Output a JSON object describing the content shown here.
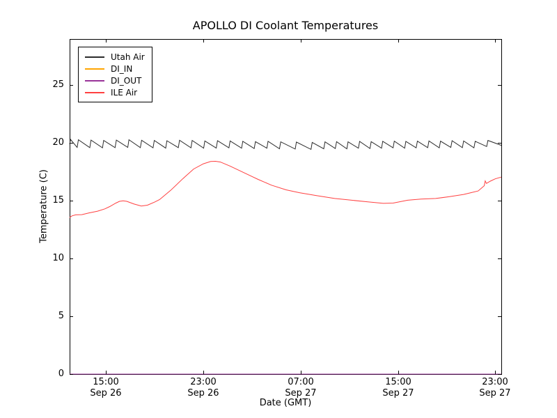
{
  "chart_data": {
    "type": "line",
    "title": "APOLLO DI Coolant Temperatures",
    "xlabel": "Date (GMT)",
    "ylabel": "Temperature (C)",
    "xlim": [
      0,
      35.5
    ],
    "ylim": [
      0,
      29
    ],
    "x_unit": "hours since Sep 26 ~12:00 GMT",
    "grid": false,
    "legend_position": "upper left",
    "axis_color": "#000000",
    "background_color": "#ffffff",
    "yticks": [
      {
        "label": "0",
        "value": 0
      },
      {
        "label": "5",
        "value": 5
      },
      {
        "label": "10",
        "value": 10
      },
      {
        "label": "15",
        "value": 15
      },
      {
        "label": "20",
        "value": 20
      },
      {
        "label": "25",
        "value": 25
      }
    ],
    "xticks": [
      {
        "time": "15:00",
        "date": "Sep 26",
        "h": 3
      },
      {
        "time": "23:00",
        "date": "Sep 26",
        "h": 11
      },
      {
        "time": "07:00",
        "date": "Sep 27",
        "h": 19
      },
      {
        "time": "15:00",
        "date": "Sep 27",
        "h": 27
      },
      {
        "time": "23:00",
        "date": "Sep 27",
        "h": 35
      }
    ],
    "series": [
      {
        "name": "Utah Air",
        "color": "#2b2b2b",
        "points": [
          [
            0,
            19.9
          ],
          [
            0.08,
            20.3
          ],
          [
            0.62,
            19.62
          ],
          [
            0.72,
            20.28
          ],
          [
            1.66,
            19.6
          ],
          [
            1.76,
            20.25
          ],
          [
            2.7,
            19.58
          ],
          [
            2.8,
            20.22
          ],
          [
            3.74,
            19.6
          ],
          [
            3.84,
            20.25
          ],
          [
            4.78,
            19.62
          ],
          [
            4.88,
            20.28
          ],
          [
            5.82,
            19.6
          ],
          [
            5.92,
            20.24
          ],
          [
            6.86,
            19.58
          ],
          [
            6.96,
            20.22
          ],
          [
            7.9,
            19.56
          ],
          [
            8.0,
            20.2
          ],
          [
            8.94,
            19.6
          ],
          [
            9.04,
            20.24
          ],
          [
            9.98,
            19.58
          ],
          [
            10.08,
            20.22
          ],
          [
            11.02,
            19.55
          ],
          [
            11.12,
            20.18
          ],
          [
            12.06,
            19.56
          ],
          [
            12.16,
            20.2
          ],
          [
            13.1,
            19.58
          ],
          [
            13.2,
            20.18
          ],
          [
            14.14,
            19.55
          ],
          [
            14.24,
            20.15
          ],
          [
            15.18,
            19.52
          ],
          [
            15.28,
            20.12
          ],
          [
            16.22,
            19.55
          ],
          [
            16.32,
            20.15
          ],
          [
            17.26,
            19.5
          ],
          [
            17.36,
            20.1
          ],
          [
            18.55,
            19.48
          ],
          [
            18.65,
            20.08
          ],
          [
            19.85,
            19.45
          ],
          [
            19.95,
            20.05
          ],
          [
            20.9,
            19.5
          ],
          [
            21.0,
            20.1
          ],
          [
            21.85,
            19.52
          ],
          [
            21.95,
            20.12
          ],
          [
            22.8,
            19.5
          ],
          [
            22.9,
            20.1
          ],
          [
            23.75,
            19.55
          ],
          [
            23.85,
            20.14
          ],
          [
            24.7,
            19.52
          ],
          [
            24.8,
            20.12
          ],
          [
            25.65,
            19.55
          ],
          [
            25.75,
            20.15
          ],
          [
            26.6,
            19.58
          ],
          [
            26.7,
            20.16
          ],
          [
            27.55,
            19.55
          ],
          [
            27.65,
            20.14
          ],
          [
            28.5,
            19.58
          ],
          [
            28.6,
            20.16
          ],
          [
            29.45,
            19.6
          ],
          [
            29.55,
            20.18
          ],
          [
            30.4,
            19.58
          ],
          [
            30.5,
            20.16
          ],
          [
            31.35,
            19.62
          ],
          [
            31.45,
            20.2
          ],
          [
            32.3,
            19.6
          ],
          [
            32.4,
            20.18
          ],
          [
            33.25,
            19.58
          ],
          [
            33.35,
            20.15
          ],
          [
            34.3,
            19.7
          ],
          [
            34.4,
            20.22
          ],
          [
            35.5,
            19.8
          ]
        ]
      },
      {
        "name": "DI_IN",
        "color": "#ffa500",
        "points": [
          [
            0,
            0
          ],
          [
            35.5,
            0
          ]
        ]
      },
      {
        "name": "DI_OUT",
        "color": "#993399",
        "points": [
          [
            0,
            0
          ],
          [
            35.5,
            0
          ]
        ]
      },
      {
        "name": "ILE Air",
        "color": "#ff4040",
        "points": [
          [
            0,
            13.55
          ],
          [
            0.2,
            13.7
          ],
          [
            0.5,
            13.78
          ],
          [
            1.0,
            13.8
          ],
          [
            1.6,
            13.95
          ],
          [
            2.3,
            14.1
          ],
          [
            2.9,
            14.3
          ],
          [
            3.3,
            14.5
          ],
          [
            3.8,
            14.8
          ],
          [
            4.1,
            14.95
          ],
          [
            4.4,
            15.0
          ],
          [
            4.7,
            14.95
          ],
          [
            5.3,
            14.72
          ],
          [
            5.9,
            14.55
          ],
          [
            6.4,
            14.62
          ],
          [
            7.0,
            14.9
          ],
          [
            7.4,
            15.1
          ],
          [
            8.3,
            15.9
          ],
          [
            9.3,
            16.9
          ],
          [
            10.2,
            17.75
          ],
          [
            11.0,
            18.2
          ],
          [
            11.6,
            18.4
          ],
          [
            12.0,
            18.42
          ],
          [
            12.4,
            18.35
          ],
          [
            13.2,
            18.0
          ],
          [
            14.3,
            17.45
          ],
          [
            15.5,
            16.85
          ],
          [
            16.6,
            16.35
          ],
          [
            17.8,
            15.95
          ],
          [
            18.9,
            15.7
          ],
          [
            20.3,
            15.45
          ],
          [
            21.8,
            15.2
          ],
          [
            23.2,
            15.05
          ],
          [
            24.6,
            14.9
          ],
          [
            25.8,
            14.78
          ],
          [
            26.6,
            14.8
          ],
          [
            27.8,
            15.05
          ],
          [
            28.9,
            15.15
          ],
          [
            30.1,
            15.2
          ],
          [
            31.2,
            15.35
          ],
          [
            32.4,
            15.55
          ],
          [
            33.0,
            15.7
          ],
          [
            33.6,
            15.85
          ],
          [
            34.1,
            16.3
          ],
          [
            34.18,
            16.72
          ],
          [
            34.28,
            16.5
          ],
          [
            34.6,
            16.7
          ],
          [
            35.0,
            16.9
          ],
          [
            35.5,
            17.05
          ]
        ]
      }
    ]
  }
}
